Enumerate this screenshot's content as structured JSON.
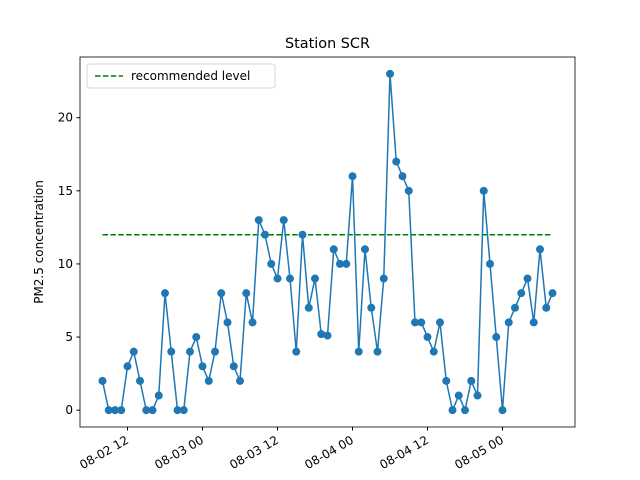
{
  "chart_data": {
    "type": "line",
    "title": "Station SCR",
    "y_label": "PM2.5 concentration",
    "x": [
      "08-02 08",
      "08-02 09",
      "08-02 10",
      "08-02 11",
      "08-02 12",
      "08-02 13",
      "08-02 14",
      "08-02 15",
      "08-02 16",
      "08-02 17",
      "08-02 18",
      "08-02 19",
      "08-02 20",
      "08-02 21",
      "08-02 22",
      "08-02 23",
      "08-03 00",
      "08-03 01",
      "08-03 02",
      "08-03 03",
      "08-03 04",
      "08-03 05",
      "08-03 06",
      "08-03 07",
      "08-03 08",
      "08-03 09",
      "08-03 10",
      "08-03 11",
      "08-03 12",
      "08-03 13",
      "08-03 14",
      "08-03 15",
      "08-03 16",
      "08-03 17",
      "08-03 18",
      "08-03 19",
      "08-03 20",
      "08-03 21",
      "08-03 22",
      "08-03 23",
      "08-04 00",
      "08-04 01",
      "08-04 02",
      "08-04 03",
      "08-04 04",
      "08-04 05",
      "08-04 06",
      "08-04 07",
      "08-04 08",
      "08-04 09",
      "08-04 10",
      "08-04 11",
      "08-04 12",
      "08-04 13",
      "08-04 14",
      "08-04 15",
      "08-04 16",
      "08-04 17",
      "08-04 18",
      "08-04 19",
      "08-04 20",
      "08-04 21",
      "08-04 22",
      "08-04 23",
      "08-05 00",
      "08-05 01",
      "08-05 02",
      "08-05 03",
      "08-05 04",
      "08-05 05",
      "08-05 06",
      "08-05 07",
      "08-05 08"
    ],
    "series": [
      {
        "color": "#1f77b4",
        "values": [
          2,
          0,
          0,
          0,
          3,
          4,
          2,
          0,
          0,
          1,
          8,
          4,
          0,
          0,
          4,
          5,
          3,
          2,
          4,
          8,
          6,
          3,
          2,
          8,
          6,
          13,
          12,
          10,
          9,
          13,
          9,
          4,
          12,
          7,
          9,
          5.2,
          5.1,
          11,
          10,
          10,
          16,
          4,
          11,
          7,
          4,
          9,
          23,
          17,
          16,
          15,
          6,
          6,
          5,
          4,
          6,
          2,
          0,
          1,
          0,
          2,
          1,
          15,
          10,
          5,
          0,
          6,
          7,
          8,
          9,
          6,
          11,
          7,
          8
        ]
      }
    ],
    "reference_line": {
      "name": "recommended level",
      "value": 12,
      "color": "green"
    },
    "xlim": [
      "08-02 04:24",
      "08-05 11:36"
    ],
    "xticks": [
      "08-02 12",
      "08-03 00",
      "08-03 12",
      "08-04 00",
      "08-04 12",
      "08-05 00"
    ],
    "ylim": [
      -1.15,
      24.15
    ],
    "yticks": [
      0,
      5,
      10,
      15,
      20
    ],
    "legend": "upper left"
  }
}
